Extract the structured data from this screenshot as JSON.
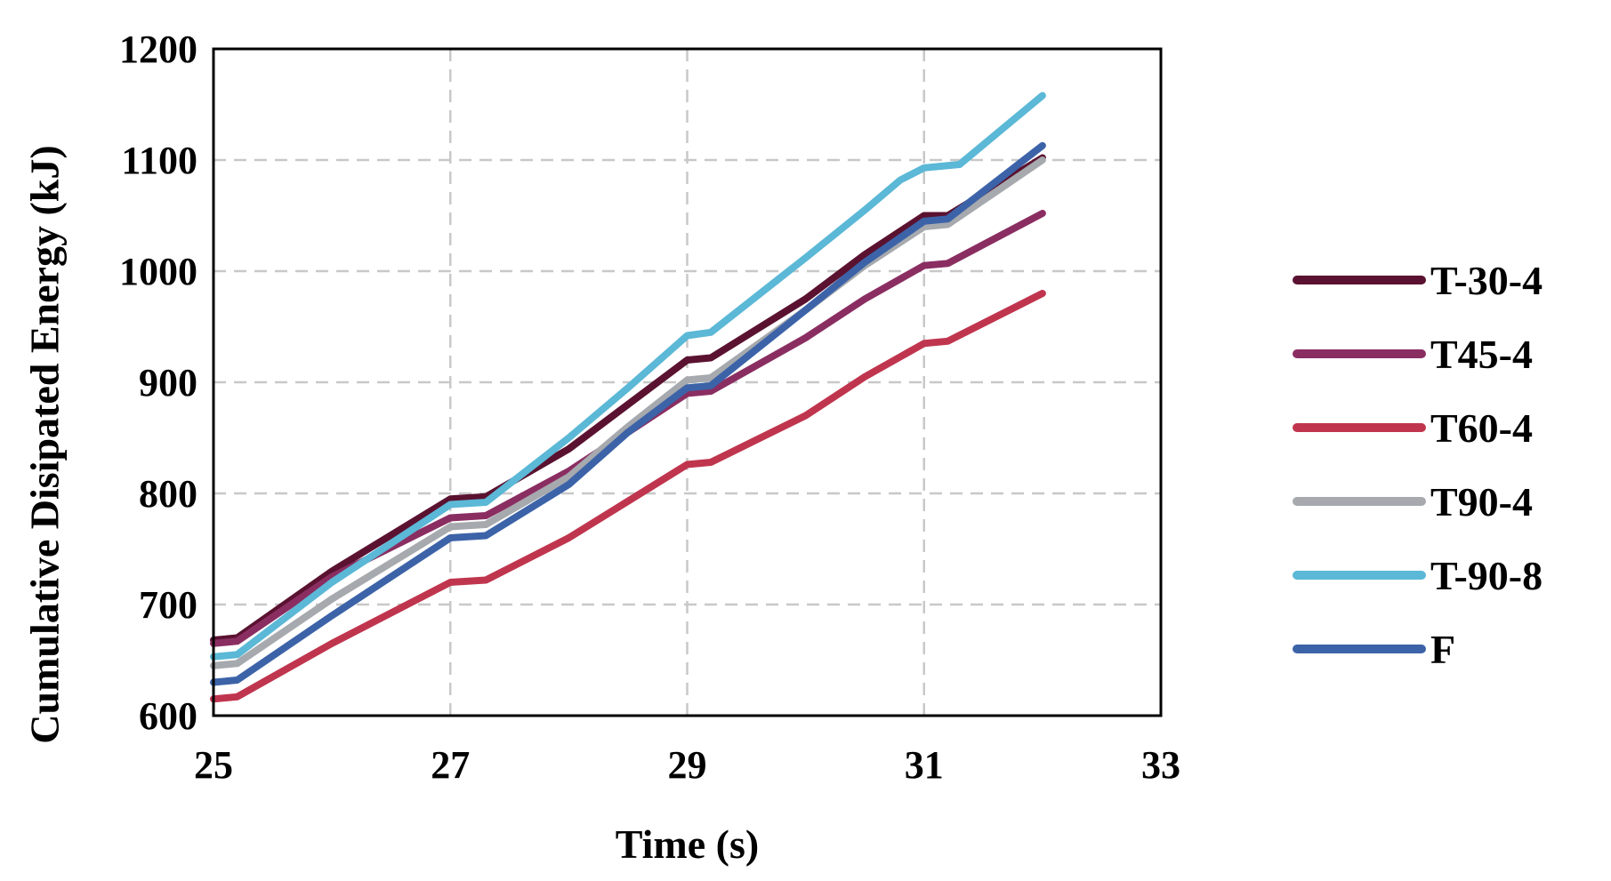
{
  "chart_data": {
    "type": "line",
    "title": "",
    "xlabel": "Time (s)",
    "ylabel": "Cumulative Disipated Energy (kJ)",
    "xlim": [
      25,
      33
    ],
    "ylim": [
      600,
      1200
    ],
    "xticks": [
      25,
      27,
      29,
      31,
      33
    ],
    "yticks": [
      600,
      700,
      800,
      900,
      1000,
      1100,
      1200
    ],
    "xtick_labels": [
      "25",
      "27",
      "29",
      "31",
      "33"
    ],
    "ytick_labels": [
      "600",
      "700",
      "800",
      "900",
      "1000",
      "1100",
      "1200"
    ],
    "grid": true,
    "legend_position": "right",
    "series": [
      {
        "name": "T-30-4",
        "color": "#5a1230",
        "x": [
          25.0,
          25.2,
          26.0,
          27.0,
          27.3,
          28.0,
          28.5,
          29.0,
          29.2,
          30.0,
          30.5,
          31.0,
          31.2,
          32.0
        ],
        "y": [
          668,
          670,
          730,
          795,
          797,
          840,
          880,
          920,
          922,
          975,
          1015,
          1050,
          1050,
          1102
        ]
      },
      {
        "name": "T45-4",
        "color": "#8a2e62",
        "x": [
          25.0,
          25.2,
          26.0,
          27.0,
          27.3,
          28.0,
          28.5,
          29.0,
          29.2,
          30.0,
          30.5,
          31.0,
          31.2,
          32.0
        ],
        "y": [
          665,
          667,
          725,
          778,
          780,
          820,
          855,
          890,
          892,
          940,
          975,
          1005,
          1007,
          1052
        ]
      },
      {
        "name": "T60-4",
        "color": "#c0354e",
        "x": [
          25.0,
          25.2,
          26.0,
          27.0,
          27.3,
          28.0,
          28.5,
          29.0,
          29.2,
          30.0,
          30.5,
          31.0,
          31.2,
          32.0
        ],
        "y": [
          615,
          617,
          665,
          720,
          722,
          760,
          793,
          826,
          828,
          870,
          905,
          935,
          937,
          980
        ]
      },
      {
        "name": "T90-4",
        "color": "#a6a9ad",
        "x": [
          25.0,
          25.2,
          26.0,
          27.0,
          27.3,
          28.0,
          28.5,
          29.0,
          29.2,
          30.0,
          30.5,
          31.0,
          31.2,
          32.0
        ],
        "y": [
          645,
          647,
          705,
          770,
          772,
          815,
          860,
          902,
          904,
          965,
          1005,
          1040,
          1042,
          1100
        ]
      },
      {
        "name": "T-90-8",
        "color": "#5bb8d6",
        "x": [
          25.0,
          25.2,
          26.0,
          27.0,
          27.3,
          28.0,
          28.5,
          29.0,
          29.2,
          30.0,
          30.5,
          30.8,
          31.0,
          31.3,
          32.0
        ],
        "y": [
          653,
          655,
          720,
          790,
          792,
          850,
          895,
          942,
          945,
          1012,
          1055,
          1082,
          1093,
          1096,
          1158
        ]
      },
      {
        "name": "F",
        "color": "#3c63a8",
        "x": [
          25.0,
          25.2,
          26.0,
          27.0,
          27.3,
          28.0,
          28.5,
          29.0,
          29.2,
          30.0,
          30.5,
          31.0,
          31.2,
          32.0
        ],
        "y": [
          630,
          632,
          690,
          760,
          762,
          808,
          855,
          895,
          897,
          965,
          1008,
          1045,
          1047,
          1113
        ]
      }
    ]
  }
}
